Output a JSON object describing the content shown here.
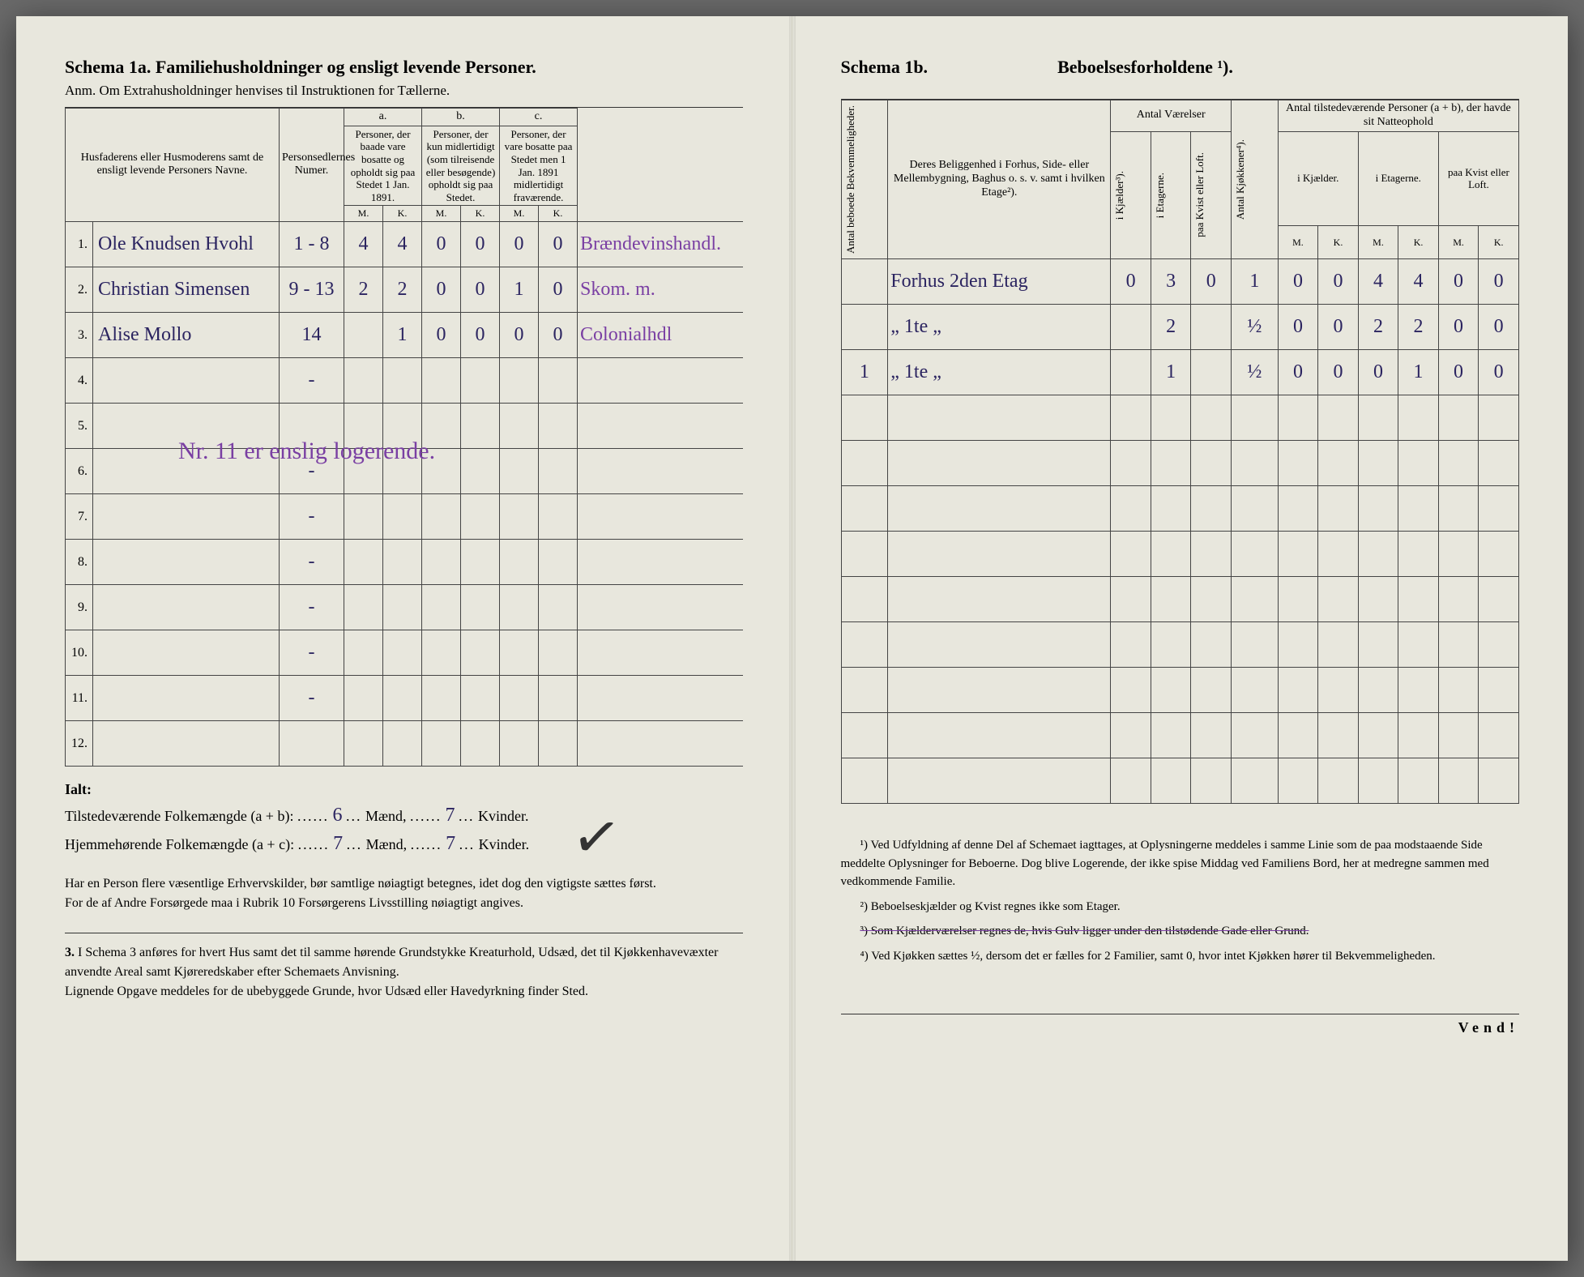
{
  "left": {
    "schemaTitle": "Schema 1a.   Familiehusholdninger og ensligt levende Personer.",
    "anm": "Anm.  Om Extrahusholdninger henvises til Instruktionen for Tællerne.",
    "headers": {
      "col1": "Husfaderens eller Husmoderens samt de ensligt levende Personers Navne.",
      "col2": "Personsedlernes Numer.",
      "a_label": "a.",
      "a_text": "Personer, der baade vare bosatte og opholdt sig paa Stedet 1 Jan. 1891.",
      "b_label": "b.",
      "b_text": "Personer, der kun midlertidigt (som tilreisende eller besøgende) opholdt sig paa Stedet.",
      "c_label": "c.",
      "c_text": "Personer, der vare bosatte paa Stedet men 1 Jan. 1891 midlertidigt fraværende.",
      "M": "M.",
      "K": "K."
    },
    "rows": [
      {
        "n": "1.",
        "name": "Ole Knudsen Hvohl",
        "num": "1 - 8",
        "aM": "4",
        "aK": "4",
        "bM": "0",
        "bK": "0",
        "cM": "0",
        "cK": "0",
        "trade": "Brændevinshandl."
      },
      {
        "n": "2.",
        "name": "Christian Simensen",
        "num": "9 - 13",
        "aM": "2",
        "aK": "2",
        "bM": "0",
        "bK": "0",
        "cM": "1",
        "cK": "0",
        "trade": "Skom. m."
      },
      {
        "n": "3.",
        "name": "Alise Mollo",
        "num": "14",
        "aM": "",
        "aK": "1",
        "bM": "0",
        "bK": "0",
        "cM": "0",
        "cK": "0",
        "trade": "Colonialhdl"
      },
      {
        "n": "4.",
        "name": "",
        "num": "-"
      },
      {
        "n": "5.",
        "name": "",
        "num": ""
      },
      {
        "n": "6.",
        "name": "",
        "num": "-"
      },
      {
        "n": "7.",
        "name": "",
        "num": "-"
      },
      {
        "n": "8.",
        "name": "",
        "num": "-"
      },
      {
        "n": "9.",
        "name": "",
        "num": "-"
      },
      {
        "n": "10.",
        "name": "",
        "num": "-"
      },
      {
        "n": "11.",
        "name": "",
        "num": "-"
      },
      {
        "n": "12.",
        "name": "",
        "num": ""
      }
    ],
    "note": "Nr. 11 er enslig logerende.",
    "totals": {
      "ialt": "Ialt:",
      "tilLabel": "Tilstedeværende Folkemængde (a + b): ",
      "tilM": "6",
      "tilK": "7",
      "hjLabel": "Hjemmehørende Folkemængde (a + c): ",
      "hjM": "7",
      "hjK": "7",
      "maend": "Mænd,",
      "kvinder": "Kvinder."
    },
    "foot1": "Har en Person flere væsentlige Erhvervskilder, bør samtlige nøiagtigt betegnes, idet dog den vigtigste sættes først.",
    "foot2": "For de af Andre Forsørgede maa i Rubrik 10 Forsørgerens Livsstilling nøiagtigt angives.",
    "foot3n": "3.",
    "foot3": "I Schema 3 anføres for hvert Hus samt det til samme hørende Grundstykke Kreaturhold, Udsæd, det til Kjøkkenhavevæxter anvendte Areal samt Kjøreredskaber efter Schemaets Anvisning.",
    "foot4": "Lignende Opgave meddeles for de ubebyggede Grunde, hvor Udsæd eller Havedyrkning finder Sted."
  },
  "right": {
    "schemaTitle": "Schema 1b.",
    "headerTitle": "Beboelsesforholdene ¹).",
    "headers": {
      "antalBek": "Antal beboede Bekvemmeligheder.",
      "belig": "Deres Beliggenhed i Forhus, Side- eller Mellembygning, Baghus o. s. v. samt i hvilken Etage²).",
      "antalVaer": "Antal Værelser",
      "kjael": "i Kjælder³).",
      "etag": "i Etagerne.",
      "kvist": "paa Kvist eller Loft.",
      "kjok": "Antal Kjøkkener⁴).",
      "present": "Antal tilstedeværende Personer (a + b), der havde sit Natteophold",
      "iKj": "i Kjælder.",
      "iEt": "i Etagerne.",
      "pKv": "paa Kvist eller Loft.",
      "M": "M.",
      "K": "K."
    },
    "rows": [
      {
        "bek": "",
        "belig": "Forhus 2den Etag",
        "kj": "0",
        "et": "3",
        "kv": "0",
        "kk": "1",
        "kjM": "0",
        "kjK": "0",
        "etM": "4",
        "etK": "4",
        "kvM": "0",
        "kvK": "0"
      },
      {
        "bek": "",
        "belig": "„    1te  „",
        "kj": "",
        "et": "2",
        "kv": "",
        "kk": "½",
        "kjM": "0",
        "kjK": "0",
        "etM": "2",
        "etK": "2",
        "kvM": "0",
        "kvK": "0"
      },
      {
        "bek": "1",
        "belig": "„    1te  „",
        "kj": "",
        "et": "1",
        "kv": "",
        "kk": "½",
        "kjM": "0",
        "kjK": "0",
        "etM": "0",
        "etK": "1",
        "kvM": "0",
        "kvK": "0"
      }
    ],
    "notes": {
      "n1": "¹) Ved Udfyldning af denne Del af Schemaet iagttages, at Oplysningerne meddeles i samme Linie som de paa modstaaende Side meddelte Oplysninger for Beboerne. Dog blive Logerende, der ikke spise Middag ved Familiens Bord, her at medregne sammen med vedkommende Familie.",
      "n2": "²) Beboelseskjælder og Kvist regnes ikke som Etager.",
      "n3": "³) Som Kjælderværelser regnes de, hvis Gulv ligger under den tilstødende Gade eller Grund.",
      "n4": "⁴) Ved Kjøkken sættes ½, dersom det er fælles for 2 Familier, samt 0, hvor intet Kjøkken hører til Bekvemmeligheden."
    },
    "vend": "Vend!"
  },
  "colors": {
    "paper": "#e8e7dd",
    "ink": "#2b2b2b",
    "handwriting": "#2b2460",
    "purple": "#7a3fa3"
  }
}
